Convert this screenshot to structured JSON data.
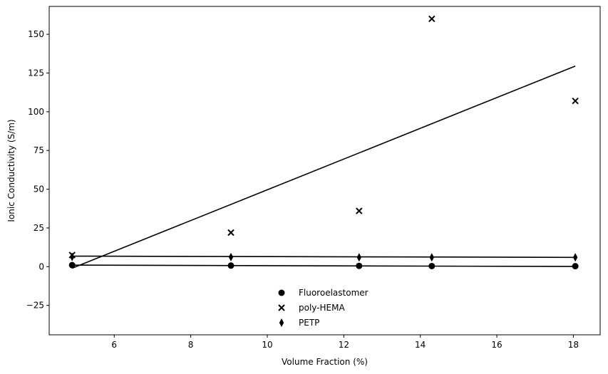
{
  "chart_data": {
    "type": "scatter",
    "title": "",
    "xlabel": "Volume Fraction (%)",
    "ylabel": "Ionic Conductivity (S/m)",
    "xlim": [
      4.3,
      18.7
    ],
    "ylim": [
      -44,
      168
    ],
    "xticks": [
      6,
      8,
      10,
      12,
      14,
      16,
      18
    ],
    "yticks": [
      -25,
      0,
      25,
      50,
      75,
      100,
      125,
      150
    ],
    "grid": false,
    "legend_position": "lower-center",
    "series": [
      {
        "name": "Fluoroelastomer",
        "marker": "circle",
        "color": "#000000",
        "points": [
          [
            4.9,
            1.0
          ],
          [
            9.05,
            0.7
          ],
          [
            12.4,
            0.5
          ],
          [
            14.3,
            0.4
          ],
          [
            18.05,
            0.3
          ]
        ],
        "fit": [
          [
            4.9,
            1.0
          ],
          [
            18.05,
            0.1
          ]
        ]
      },
      {
        "name": "poly-HEMA",
        "marker": "x",
        "color": "#000000",
        "points": [
          [
            4.9,
            7.5
          ],
          [
            9.05,
            22.0
          ],
          [
            12.4,
            36.0
          ],
          [
            14.3,
            160.0
          ],
          [
            18.05,
            107.0
          ]
        ],
        "fit": [
          [
            4.9,
            -1.0
          ],
          [
            18.05,
            129.5
          ]
        ]
      },
      {
        "name": "PETP",
        "marker": "thin_diamond",
        "color": "#000000",
        "points": [
          [
            4.9,
            6.3
          ],
          [
            9.05,
            6.2
          ],
          [
            12.4,
            6.0
          ],
          [
            14.3,
            6.0
          ],
          [
            18.05,
            6.0
          ]
        ],
        "fit": [
          [
            4.9,
            6.8
          ],
          [
            18.05,
            6.0
          ]
        ]
      }
    ]
  }
}
